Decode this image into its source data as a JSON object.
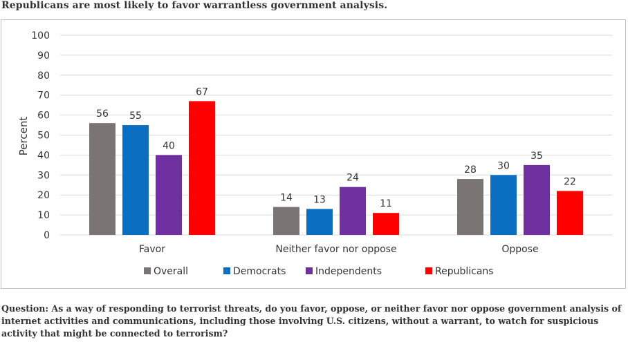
{
  "headline": "Republicans are most likely to favor warrantless government analysis.",
  "question": "Question: As a way of responding to terrorist threats, do you favor, oppose, or neither favor nor oppose government analysis of internet activities and communications, including those involving U.S. citizens, without a warrant, to watch for suspicious activity that might be connected to terrorism?",
  "chart_data": {
    "type": "bar",
    "title": "Republicans are most likely to favor warrantless government analysis.",
    "xlabel": "",
    "ylabel": "Percent",
    "ylim": [
      0,
      100
    ],
    "yticks": [
      0,
      10,
      20,
      30,
      40,
      50,
      60,
      70,
      80,
      90,
      100
    ],
    "grid": true,
    "legend_position": "bottom",
    "categories": [
      "Favor",
      "Neither favor nor oppose",
      "Oppose"
    ],
    "series": [
      {
        "name": "Overall",
        "color": "#7a7472",
        "values": [
          56,
          14,
          28
        ]
      },
      {
        "name": "Democrats",
        "color": "#0b6fc1",
        "values": [
          55,
          13,
          30
        ]
      },
      {
        "name": "Independents",
        "color": "#7030a0",
        "values": [
          40,
          24,
          35
        ]
      },
      {
        "name": "Republicans",
        "color": "#ff0000",
        "values": [
          67,
          11,
          22
        ]
      }
    ]
  }
}
